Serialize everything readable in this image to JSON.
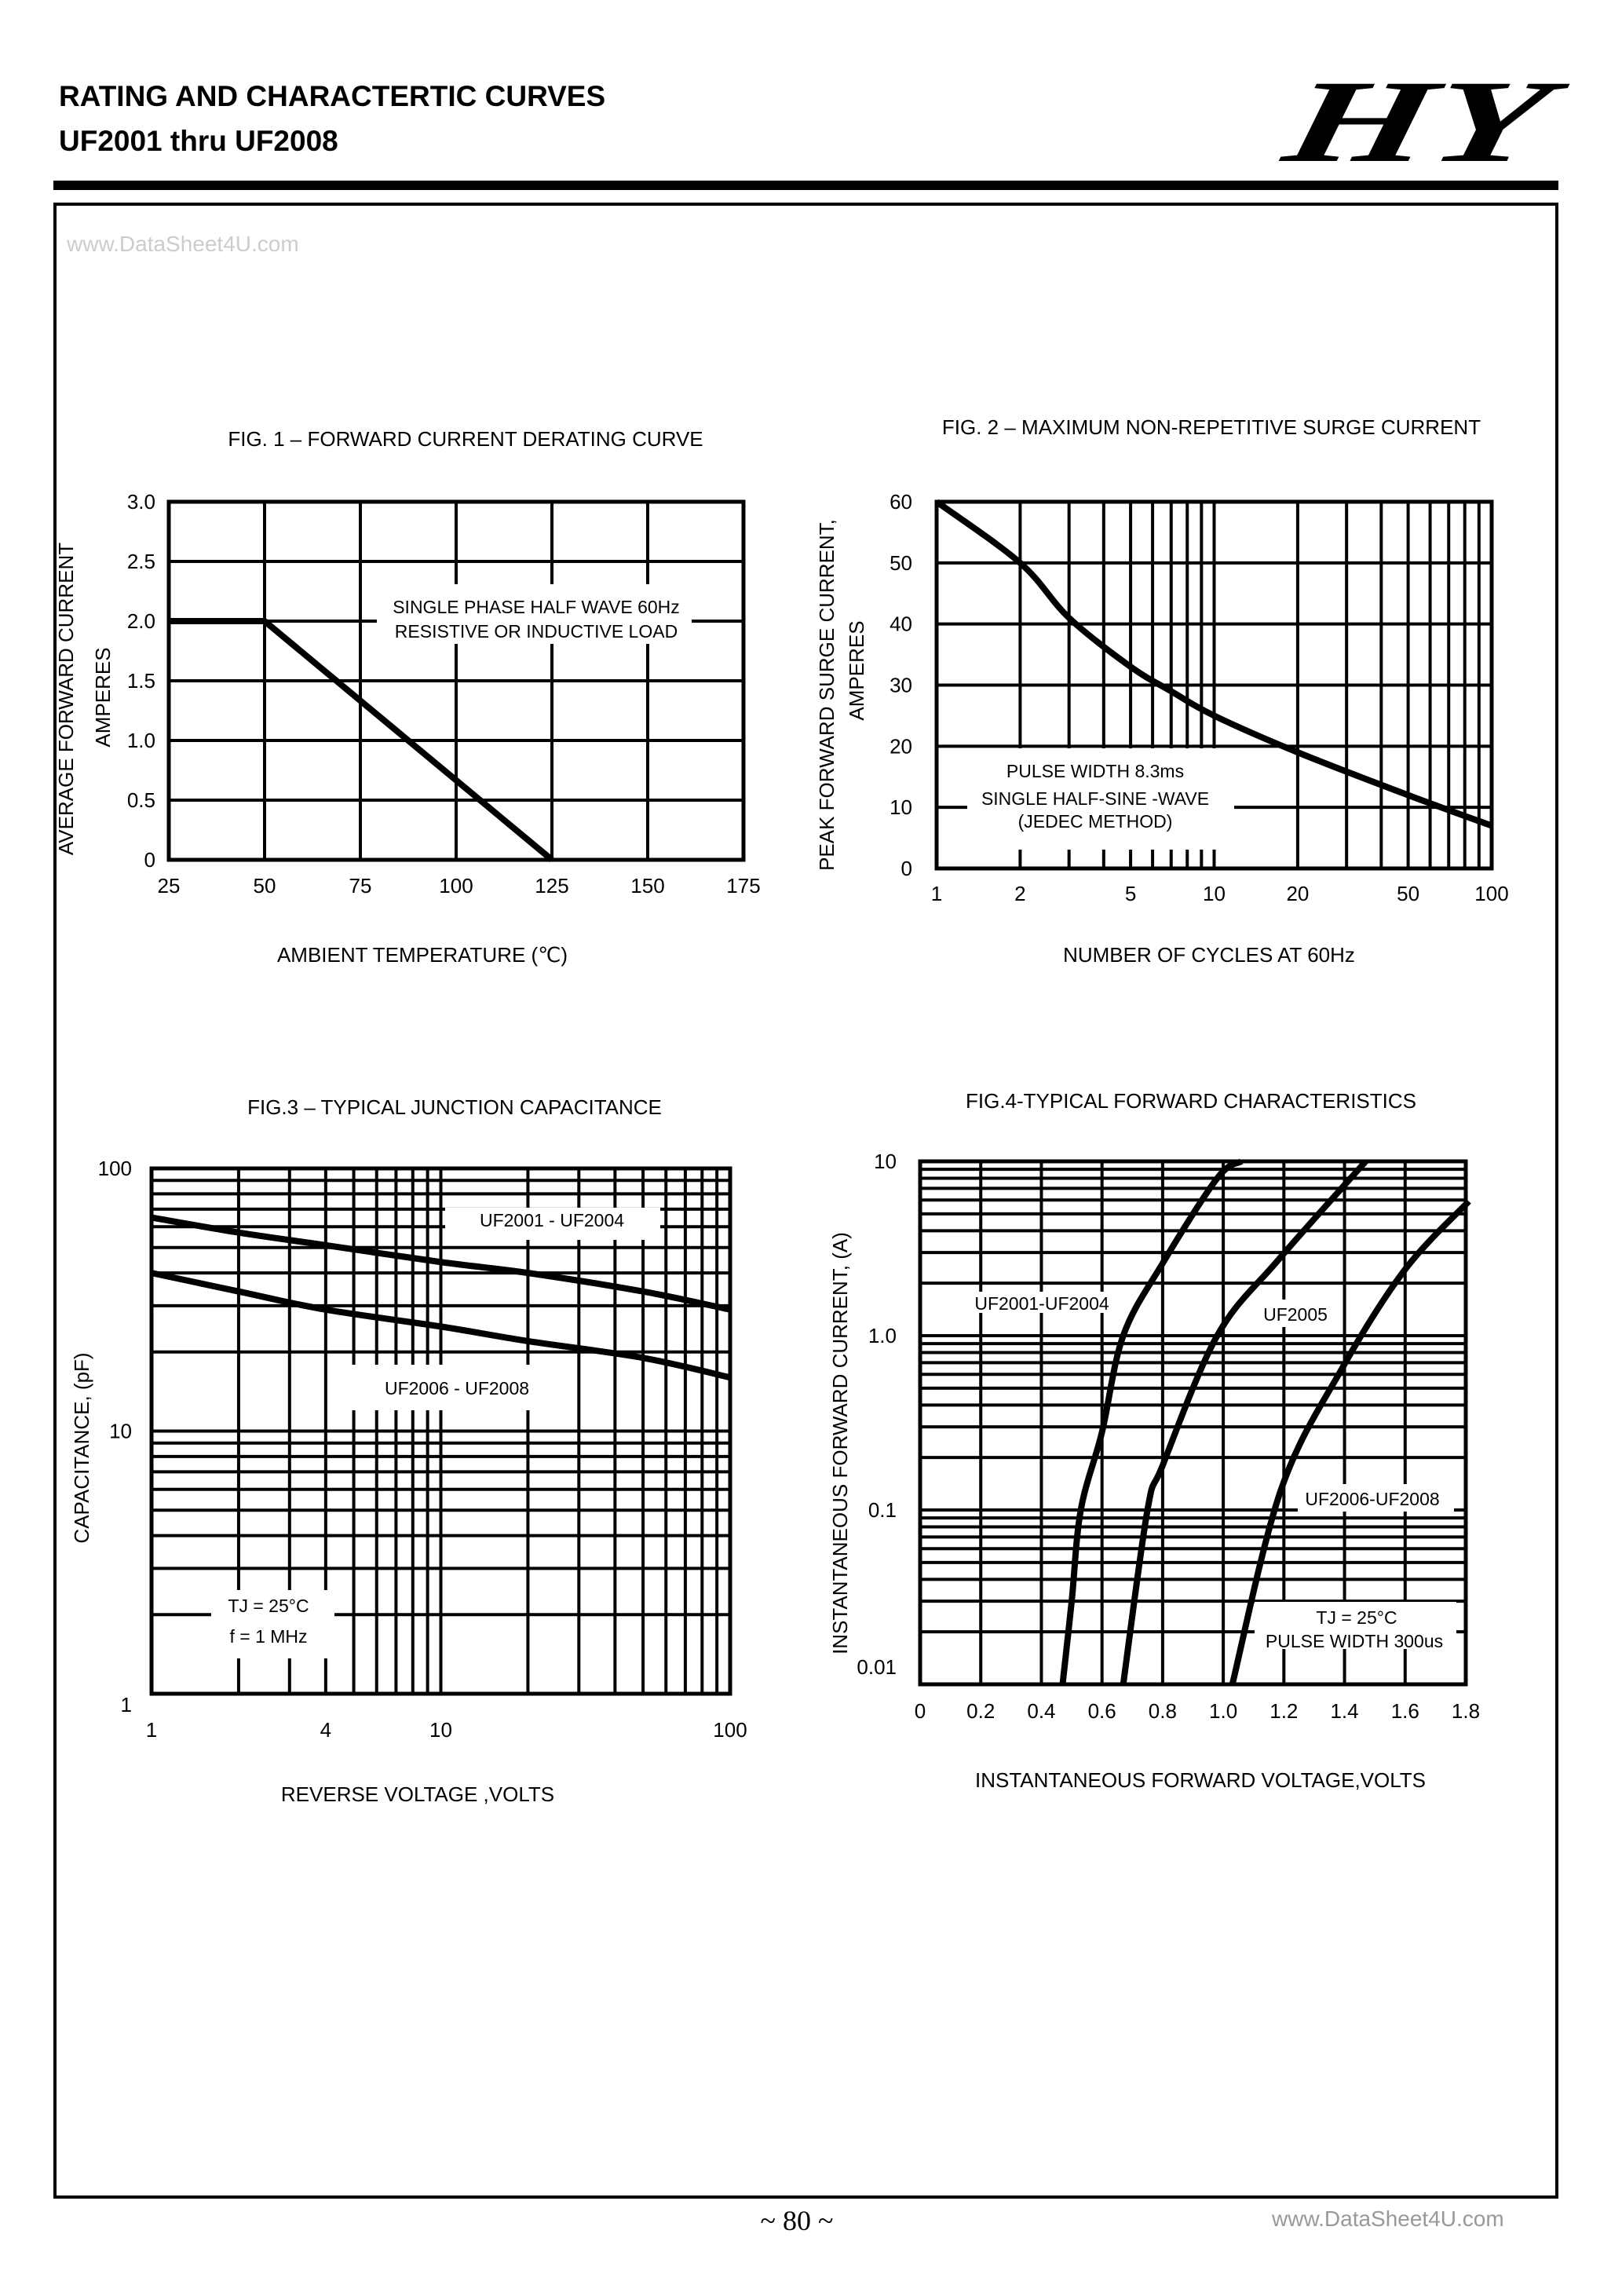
{
  "header": {
    "title": "RATING AND CHARACTERTIC CURVES",
    "subtitle": "UF2001 thru UF2008",
    "logo_text": "HY"
  },
  "footer": {
    "page_number": "~ 80 ~",
    "watermark": "www.DataSheet4U.com"
  },
  "side_watermark": "www.DataSheet4U.com",
  "chart_data": [
    {
      "type": "line",
      "title": "FIG. 1 – FORWARD CURRENT DERATING CURVE",
      "xlabel": "AMBIENT TEMPERATURE (℃)",
      "ylabel": [
        "AVERAGE FORWARD CURRENT",
        "AMPERES"
      ],
      "x_scale": "linear",
      "y_scale": "linear",
      "xlim": [
        25,
        175
      ],
      "ylim": [
        0,
        3.0
      ],
      "x_ticks": [
        "25",
        "50",
        "75",
        "100",
        "125",
        "150",
        "175"
      ],
      "y_ticks": [
        "0",
        "0.5",
        "1.0",
        "1.5",
        "2.0",
        "2.5",
        "3.0"
      ],
      "grid": true,
      "annotation": [
        "SINGLE PHASE HALF WAVE 60Hz",
        "RESISTIVE OR INDUCTIVE LOAD"
      ],
      "series": [
        {
          "x": [
            25,
            50,
            125
          ],
          "y": [
            2.0,
            2.0,
            0
          ]
        }
      ]
    },
    {
      "type": "line",
      "title": "FIG. 2 – MAXIMUM NON-REPETITIVE SURGE CURRENT",
      "xlabel": "NUMBER OF CYCLES AT 60Hz",
      "ylabel": [
        "PEAK FORWARD SURGE CURRENT,",
        "AMPERES"
      ],
      "x_scale": "log",
      "y_scale": "linear",
      "xlim": [
        1,
        100
      ],
      "ylim": [
        0,
        60
      ],
      "x_ticks": [
        "1",
        "2",
        "5",
        "10",
        "20",
        "50",
        "100"
      ],
      "y_ticks": [
        "0",
        "10",
        "20",
        "30",
        "40",
        "50",
        "60"
      ],
      "grid": true,
      "annotation": [
        "PULSE WIDTH 8.3ms",
        "SINGLE HALF-SINE -WAVE",
        "(JEDEC METHOD)"
      ],
      "series": [
        {
          "x": [
            1,
            2,
            3,
            5,
            7,
            10,
            20,
            50,
            100
          ],
          "y": [
            60,
            50,
            41,
            33,
            29,
            25,
            19,
            12,
            7
          ]
        }
      ]
    },
    {
      "type": "line",
      "title": "FIG.3 – TYPICAL JUNCTION CAPACITANCE",
      "xlabel": "REVERSE VOLTAGE ,VOLTS",
      "ylabel": [
        "CAPACITANCE, (pF)"
      ],
      "x_scale": "log",
      "y_scale": "log",
      "xlim": [
        1,
        100
      ],
      "ylim": [
        1,
        100
      ],
      "x_ticks": [
        "1",
        "4",
        "10",
        "100"
      ],
      "y_ticks": [
        "1",
        "10",
        "100"
      ],
      "grid": true,
      "annotation": [
        "TJ = 25°C",
        "f = 1 MHz"
      ],
      "series": [
        {
          "name": "UF2001 - UF2004",
          "x": [
            1,
            2,
            4,
            10,
            20,
            50,
            100
          ],
          "y": [
            65,
            57,
            51,
            44,
            40,
            34,
            29
          ]
        },
        {
          "name": "UF2006 - UF2008",
          "x": [
            1,
            2,
            4,
            10,
            20,
            50,
            100
          ],
          "y": [
            40,
            34,
            29,
            25,
            22,
            19,
            16
          ]
        }
      ]
    },
    {
      "type": "line",
      "title": "FIG.4-TYPICAL FORWARD CHARACTERISTICS",
      "xlabel": "INSTANTANEOUS FORWARD VOLTAGE,VOLTS",
      "ylabel": [
        "INSTANTANEOUS FORWARD CURRENT, (A)"
      ],
      "x_scale": "linear",
      "y_scale": "log",
      "xlim": [
        0,
        1.8
      ],
      "ylim": [
        0.01,
        10
      ],
      "x_ticks": [
        "0",
        "0.2",
        "0.4",
        "0.6",
        "0.8",
        "1.0",
        "1.2",
        "1.4",
        "1.6",
        "1.8"
      ],
      "y_ticks": [
        "0.01",
        "0.1",
        "1.0",
        "10"
      ],
      "grid": true,
      "annotation": [
        "TJ = 25°C",
        "PULSE WIDTH 300us"
      ],
      "series": [
        {
          "name": "UF2001-UF2004",
          "x": [
            0.47,
            0.5,
            0.53,
            0.6,
            0.67,
            0.8,
            0.98,
            1.06
          ],
          "y": [
            0.01,
            0.03,
            0.1,
            0.28,
            1.0,
            2.6,
            8,
            10
          ]
        },
        {
          "name": "UF2005",
          "x": [
            0.67,
            0.75,
            0.8,
            0.98,
            1.18,
            1.47
          ],
          "y": [
            0.01,
            0.1,
            0.18,
            1.0,
            2.7,
            10
          ]
        },
        {
          "name": "UF2006-UF2008",
          "x": [
            1.03,
            1.19,
            1.39,
            1.6,
            1.81
          ],
          "y": [
            0.01,
            0.13,
            0.64,
            2.4,
            5.9
          ]
        }
      ]
    }
  ]
}
